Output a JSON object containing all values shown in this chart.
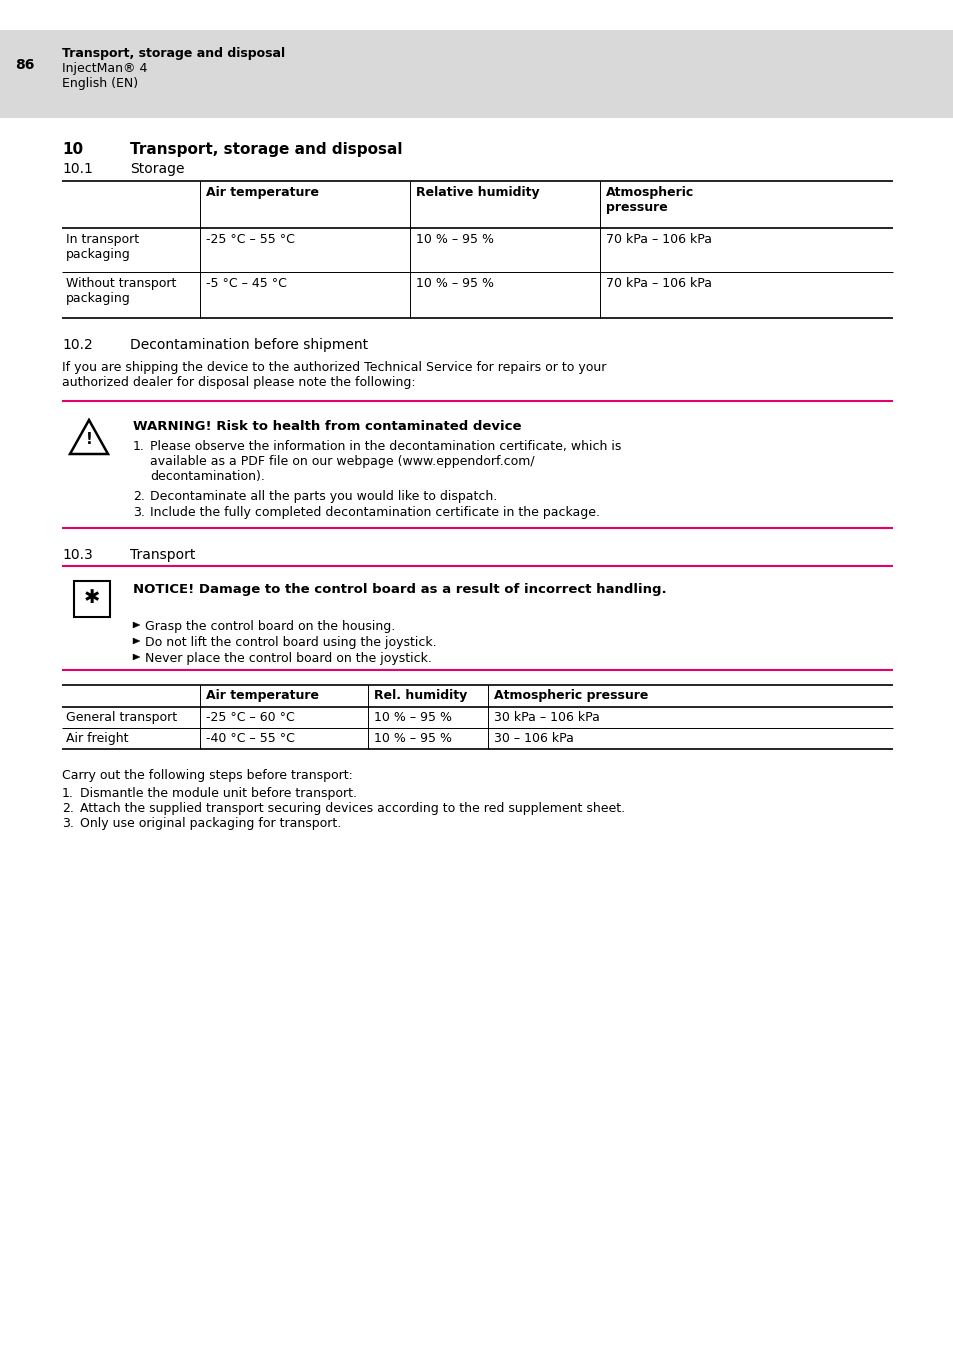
{
  "bg_color": "#ffffff",
  "header_bg": "#d9d9d9",
  "pink_line_color": "#e5006d",
  "header": {
    "page_num": "86",
    "line1": "Transport, storage and disposal",
    "line2": "InjectMan® 4",
    "line3": "English (EN)"
  },
  "section10_title": "10",
  "section10_text": "Transport, storage and disposal",
  "section101": "10.1",
  "section101_text": "Storage",
  "table1_headers": [
    "",
    "Air temperature",
    "Relative humidity",
    "Atmospheric\npressure"
  ],
  "table1_rows": [
    [
      "In transport\npackaging",
      "-25 °C – 55 °C",
      "10 % – 95 %",
      "70 kPa – 106 kPa"
    ],
    [
      "Without transport\npackaging",
      "-5 °C – 45 °C",
      "10 % – 95 %",
      "70 kPa – 106 kPa"
    ]
  ],
  "section102": "10.2",
  "section102_text": "Decontamination before shipment",
  "para1_line1": "If you are shipping the device to the authorized Technical Service for repairs or to your",
  "para1_line2": "authorized dealer for disposal please note the following:",
  "warning_title": "WARNING! Risk to health from contaminated device",
  "warning_item1_line1": "Please observe the information in the decontamination certificate, which is",
  "warning_item1_line2": "available as a PDF file on our webpage (www.eppendorf.com/",
  "warning_item1_line3": "decontamination).",
  "warning_item2": "Decontaminate all the parts you would like to dispatch.",
  "warning_item3": "Include the fully completed decontamination certificate in the package.",
  "section103": "10.3",
  "section103_text": "Transport",
  "notice_title": "NOTICE! Damage to the control board as a result of incorrect handling.",
  "notice_item1": "Grasp the control board on the housing.",
  "notice_item2": "Do not lift the control board using the joystick.",
  "notice_item3": "Never place the control board on the joystick.",
  "table2_headers": [
    "",
    "Air temperature",
    "Rel. humidity",
    "Atmospheric pressure"
  ],
  "table2_rows": [
    [
      "General transport",
      "-25 °C – 60 °C",
      "10 % – 95 %",
      "30 kPa – 106 kPa"
    ],
    [
      "Air freight",
      "-40 °C – 55 °C",
      "10 % – 95 %",
      "30 – 106 kPa"
    ]
  ],
  "carry_out_text": "Carry out the following steps before transport:",
  "carry_item1": "Dismantle the module unit before transport.",
  "carry_item2": "Attach the supplied transport securing devices according to the red supplement sheet.",
  "carry_item3": "Only use original packaging for transport."
}
